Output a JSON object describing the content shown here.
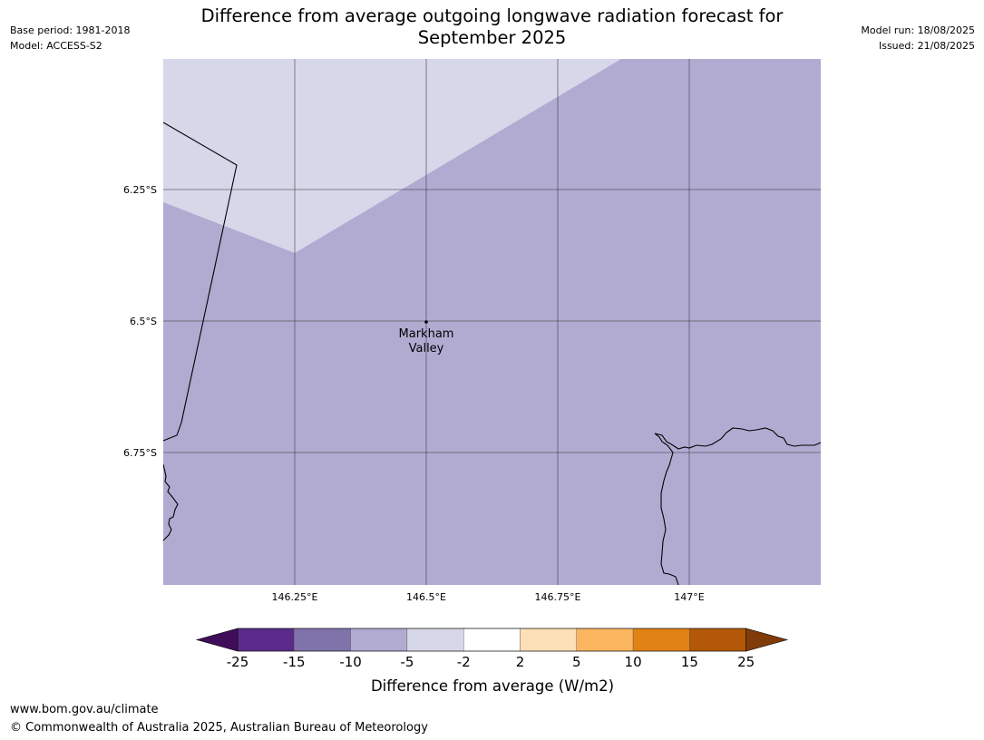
{
  "header": {
    "base_period": "Base period: 1981-2018",
    "model": "Model: ACCESS-S2",
    "model_run": "Model run: 18/08/2025",
    "issued": "Issued: 21/08/2025",
    "title_line1": "Difference from average outgoing longwave radiation forecast for",
    "title_line2": "September 2025"
  },
  "map": {
    "lon_labels": [
      "146.25°E",
      "146.5°E",
      "146.75°E",
      "147°E"
    ],
    "lat_labels": [
      "6.25°S",
      "6.5°S",
      "6.75°S"
    ],
    "place": {
      "name_line1": "Markham",
      "name_line2": "Valley",
      "lon": 146.5,
      "lat": -6.5
    },
    "fill_colors": {
      "base": "#b1abd2",
      "light": "#d7d7ea"
    }
  },
  "colorbar": {
    "ticks": [
      "-25",
      "-15",
      "-10",
      "-5",
      "-2",
      "2",
      "5",
      "10",
      "15",
      "25"
    ],
    "colors": [
      "#3f0d59",
      "#5a2a8a",
      "#8073ac",
      "#b1abd2",
      "#d7d7ea",
      "#ffffff",
      "#fde0b5",
      "#fbb55f",
      "#e08214",
      "#b35806",
      "#7f3b08"
    ],
    "label": "Difference from average (W/m2)"
  },
  "footer": {
    "url": "www.bom.gov.au/climate",
    "copyright": "© Commonwealth of Australia 2025, Australian Bureau of Meteorology"
  }
}
